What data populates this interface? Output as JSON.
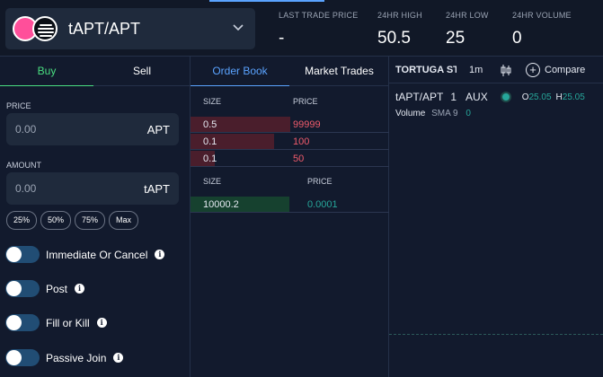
{
  "pair": {
    "title": "tAPT/APT"
  },
  "stats": [
    {
      "label": "LAST TRADE PRICE",
      "value": "-"
    },
    {
      "label": "24HR HIGH",
      "value": "50.5"
    },
    {
      "label": "24HR LOW",
      "value": "25"
    },
    {
      "label": "24HR VOLUME",
      "value": "0"
    }
  ],
  "order_form": {
    "tabs": [
      "Buy",
      "Sell"
    ],
    "price_label": "PRICE",
    "price_placeholder": "0.00",
    "price_unit": "APT",
    "amount_label": "AMOUNT",
    "amount_placeholder": "0.00",
    "amount_unit": "tAPT",
    "percent_buttons": [
      "25%",
      "50%",
      "75%",
      "Max"
    ],
    "toggles": [
      {
        "label": "Immediate Or Cancel",
        "on": false
      },
      {
        "label": "Post",
        "on": false
      },
      {
        "label": "Fill or Kill",
        "on": false
      },
      {
        "label": "Passive Join",
        "on": false
      }
    ]
  },
  "order_book": {
    "tabs": [
      "Order Book",
      "Market Trades"
    ],
    "size_header": "SIZE",
    "price_header": "PRICE",
    "asks": [
      {
        "size": "0.5",
        "price": "99999",
        "depth": 0.5
      },
      {
        "size": "0.1",
        "price": "100",
        "depth": 0.42
      },
      {
        "size": "0.1",
        "price": "50",
        "depth": 0.12
      }
    ],
    "bids": [
      {
        "size": "10000.2",
        "price": "0.0001",
        "depth": 1.0
      }
    ]
  },
  "chart": {
    "symbol": "TORTUGA STAKED APTOS",
    "interval": "1m",
    "compare_label": "Compare",
    "legend_symbol": "tAPT/APT",
    "legend_interval": "1",
    "legend_exchange": "AUX",
    "open_label": "O",
    "open_value": "25.05",
    "high_label": "H",
    "high_value": "25.05",
    "volume_label": "Volume",
    "volume_study": "SMA 9",
    "volume_value": "0"
  },
  "colors": {
    "accent_blue": "#5aa3ff",
    "buy_green": "#4ade80",
    "ask_red": "#ef5b6b",
    "bid_green": "#26a69a",
    "panel_bg": "#121a2d",
    "input_bg": "#1f2a3c"
  },
  "icons": {
    "pair_logo": "pair-logo-icon",
    "dropdown": "chevron-down-icon",
    "info": "info-icon",
    "candle": "candlestick-icon",
    "compare": "plus-circle-icon"
  }
}
